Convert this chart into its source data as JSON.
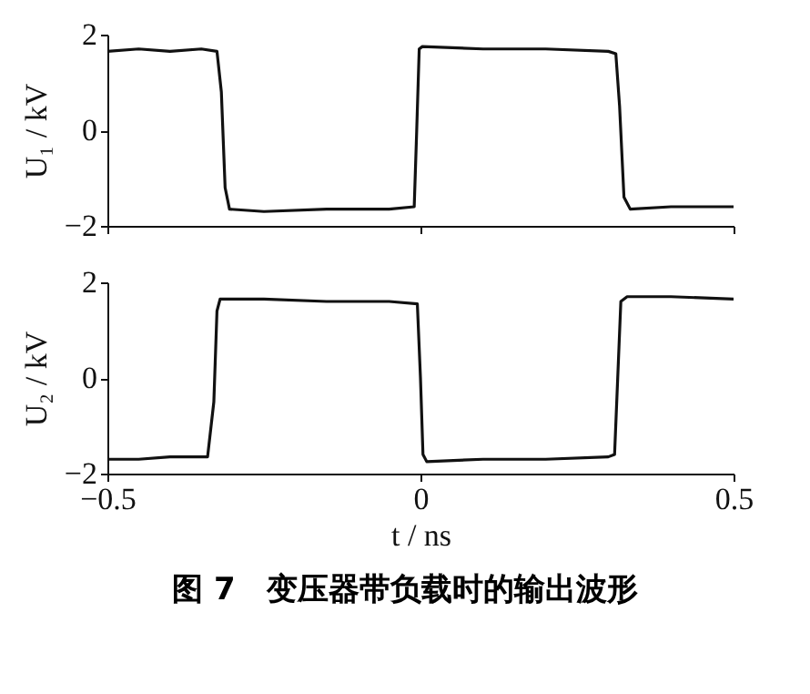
{
  "chart_data": [
    {
      "type": "line",
      "ylabel": "U₁ / kV",
      "xlim": [
        -0.5,
        0.5
      ],
      "xticks": [
        -0.5,
        0,
        0.5
      ],
      "ylim": [
        -2,
        2
      ],
      "yticks": [
        -2,
        0,
        2
      ],
      "tick_labels": "y",
      "grid": false,
      "legend": false,
      "series": [
        {
          "color": "#111111",
          "x": [
            -0.5,
            -0.45,
            -0.4,
            -0.35,
            -0.325,
            -0.318,
            -0.312,
            -0.305,
            -0.25,
            -0.15,
            -0.05,
            -0.01,
            -0.006,
            -0.002,
            0.003,
            0.1,
            0.2,
            0.3,
            0.312,
            0.318,
            0.325,
            0.335,
            0.4,
            0.5
          ],
          "values": [
            1.65,
            1.7,
            1.65,
            1.7,
            1.65,
            0.8,
            -1.2,
            -1.65,
            -1.7,
            -1.65,
            -1.65,
            -1.6,
            0,
            1.7,
            1.75,
            1.7,
            1.7,
            1.65,
            1.6,
            0.5,
            -1.4,
            -1.65,
            -1.6,
            -1.6
          ]
        }
      ]
    },
    {
      "type": "line",
      "xlabel": "t / ns",
      "ylabel": "U₂ / kV",
      "xlim": [
        -0.5,
        0.5
      ],
      "xticks": [
        -0.5,
        0,
        0.5
      ],
      "ylim": [
        -2,
        2
      ],
      "yticks": [
        -2,
        0,
        2
      ],
      "grid": false,
      "legend": false,
      "series": [
        {
          "color": "#111111",
          "x": [
            -0.5,
            -0.45,
            -0.4,
            -0.34,
            -0.33,
            -0.325,
            -0.32,
            -0.25,
            -0.15,
            -0.05,
            -0.005,
            0,
            0.004,
            0.01,
            0.1,
            0.2,
            0.3,
            0.31,
            0.315,
            0.32,
            0.33,
            0.4,
            0.5
          ],
          "values": [
            -1.7,
            -1.7,
            -1.65,
            -1.65,
            -0.5,
            1.4,
            1.65,
            1.65,
            1.6,
            1.6,
            1.55,
            0,
            -1.6,
            -1.75,
            -1.7,
            -1.7,
            -1.65,
            -1.6,
            0,
            1.6,
            1.7,
            1.7,
            1.65
          ]
        }
      ],
      "annotations": [
        "图 7　变压器带负载时的输出波形"
      ]
    }
  ]
}
